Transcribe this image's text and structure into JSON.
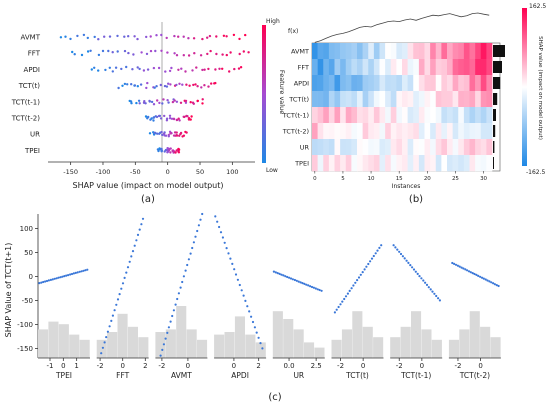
{
  "panel_labels": {
    "a": "(a)",
    "b": "(b)",
    "c": "(c)"
  },
  "colors": {
    "low": "#1e88e5",
    "high": "#ff0051",
    "hist": "#d9d9d9",
    "dep": "#3a77d8"
  },
  "chart_data": [
    {
      "type": "scatter",
      "name": "beeswarm",
      "features": [
        "AVMT",
        "FFT",
        "APDI",
        "TCT(t)",
        "TCT(t-1)",
        "TCT(t-2)",
        "UR",
        "TPEI"
      ],
      "xlabel": "SHAP value (impact on model output)",
      "xticks": [
        -150,
        -100,
        -50,
        0,
        50,
        100
      ],
      "xlim": [
        -185,
        135
      ],
      "colorbar": {
        "label": "Feature value",
        "high": "High",
        "low": "Low"
      },
      "spread": [
        [
          -165,
          120
        ],
        [
          -150,
          125
        ],
        [
          -120,
          115
        ],
        [
          -75,
          75
        ],
        [
          -60,
          55
        ],
        [
          -35,
          40
        ],
        [
          -25,
          28
        ],
        [
          -15,
          20
        ]
      ]
    },
    {
      "type": "heatmap",
      "name": "instance heatmap",
      "features": [
        "AVMT",
        "FFT",
        "APDI",
        "TCT(t)",
        "TCT(t-1)",
        "TCT(t-2)",
        "UR",
        "TPEI"
      ],
      "fx_label": "f(x)",
      "xlabel": "Instances",
      "xticks": [
        0,
        5,
        10,
        15,
        20,
        25,
        30
      ],
      "n_instances": 32,
      "colorbar": {
        "label": "SHAP value (impact on model output)",
        "max": "162.5",
        "min": "-162.5"
      },
      "fx": [
        0.05,
        0.1,
        0.18,
        0.25,
        0.3,
        0.33,
        0.38,
        0.45,
        0.52,
        0.55,
        0.53,
        0.6,
        0.65,
        0.7,
        0.72,
        0.7,
        0.75,
        0.78,
        0.74,
        0.8,
        0.85,
        0.9,
        0.88,
        0.92,
        0.95,
        0.9,
        0.85,
        0.88,
        0.95,
        0.97,
        0.93,
        0.9
      ],
      "importance": [
        1.0,
        0.75,
        0.6,
        0.35,
        0.25,
        0.18,
        0.12,
        0.08
      ],
      "rows": [
        {
          "start": -0.9,
          "end": 0.9
        },
        {
          "start": -0.8,
          "end": 0.8
        },
        {
          "start": -0.9,
          "end": 0.6
        },
        {
          "start": -0.5,
          "end": 0.35
        },
        {
          "start": 0.3,
          "end": -0.25
        },
        {
          "start": 0.2,
          "end": -0.2
        },
        {
          "start": -0.15,
          "end": 0.15
        },
        {
          "start": 0.1,
          "end": -0.1
        }
      ]
    },
    {
      "type": "scatter",
      "name": "dependence plots",
      "ylabel": "SHAP Value of TCT(t+1)",
      "yticks": [
        100,
        50,
        0,
        -50,
        -100,
        -150
      ],
      "ylim": [
        -170,
        130
      ],
      "panels": [
        {
          "xlabel": "TPEI",
          "xticks": [
            "-1",
            "0",
            "1"
          ],
          "xlim": [
            -1.9,
            2.0
          ],
          "line": [
            [
              -1.8,
              -14
            ],
            [
              1.8,
              14
            ]
          ],
          "hist": [
            0.55,
            0.7,
            0.65,
            0.45,
            0.35
          ]
        },
        {
          "xlabel": "FFT",
          "xticks": [
            "-2",
            "0",
            "2"
          ],
          "xlim": [
            -2.3,
            2.3
          ],
          "line": [
            [
              -1.9,
              -160
            ],
            [
              1.8,
              120
            ]
          ],
          "hist": [
            0.35,
            0.5,
            0.85,
            0.6,
            0.4
          ]
        },
        {
          "xlabel": "AVMT",
          "xticks": [
            "-2",
            "0"
          ],
          "xlim": [
            -2.5,
            1.5
          ],
          "line": [
            [
              -2.1,
              -165
            ],
            [
              1.1,
              130
            ]
          ],
          "hist": [
            0.5,
            0.55,
            1.0,
            0.55,
            0.35
          ]
        },
        {
          "xlabel": "APDI",
          "xticks": [
            "0",
            "2"
          ],
          "xlim": [
            -1.6,
            2.6
          ],
          "line": [
            [
              -1.5,
              125
            ],
            [
              2.3,
              -150
            ]
          ],
          "hist": [
            0.45,
            0.5,
            0.8,
            0.45,
            0.3
          ]
        },
        {
          "xlabel": "UR",
          "xticks": [
            "0.0",
            "2.5"
          ],
          "xlim": [
            -1.5,
            3.3
          ],
          "line": [
            [
              -1.4,
              10
            ],
            [
              3.0,
              -30
            ]
          ],
          "hist": [
            0.9,
            0.75,
            0.55,
            0.3,
            0.2
          ]
        },
        {
          "xlabel": "TCT(t)",
          "xticks": [
            "-2",
            "0"
          ],
          "xlim": [
            -2.8,
            1.8
          ],
          "line": [
            [
              -2.5,
              -75
            ],
            [
              1.6,
              65
            ]
          ],
          "hist": [
            0.35,
            0.55,
            0.9,
            0.6,
            0.4
          ]
        },
        {
          "xlabel": "TCT(t-1)",
          "xticks": [
            "-2",
            "0"
          ],
          "xlim": [
            -2.8,
            1.8
          ],
          "line": [
            [
              -2.5,
              65
            ],
            [
              1.6,
              -50
            ]
          ],
          "hist": [
            0.4,
            0.6,
            0.9,
            0.55,
            0.35
          ]
        },
        {
          "xlabel": "TCT(t-2)",
          "xticks": [
            "-2",
            "0"
          ],
          "xlim": [
            -2.8,
            1.8
          ],
          "line": [
            [
              -2.5,
              28
            ],
            [
              1.6,
              -20
            ]
          ],
          "hist": [
            0.35,
            0.55,
            0.9,
            0.6,
            0.4
          ]
        }
      ]
    }
  ]
}
